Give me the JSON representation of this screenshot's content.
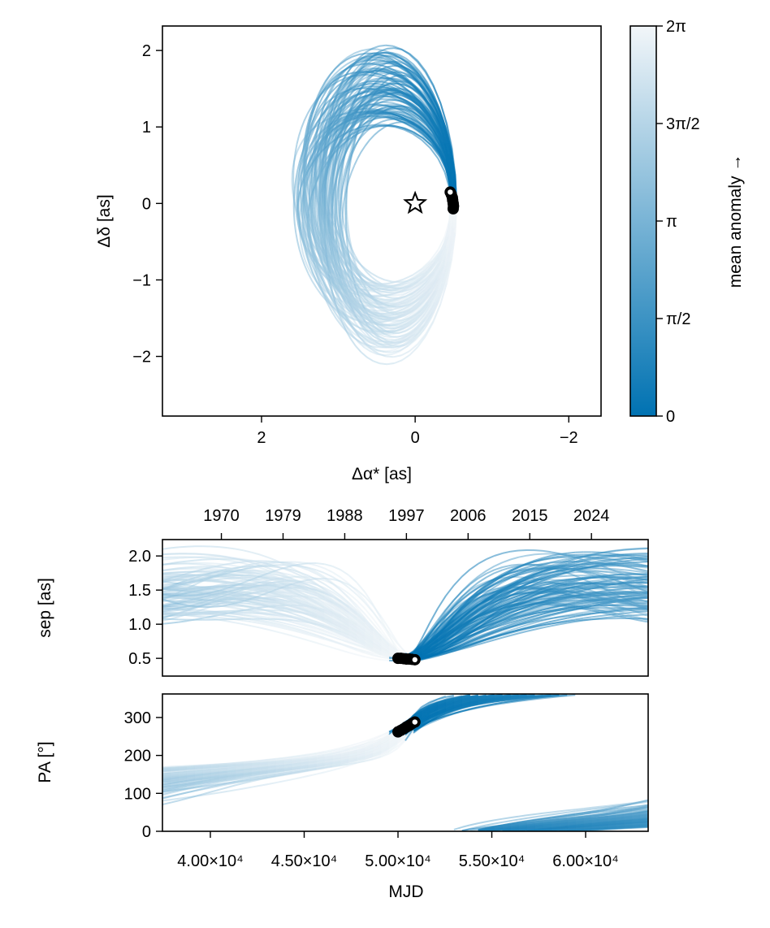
{
  "chart_data": [
    {
      "type": "line",
      "panel": "sky",
      "xlabel": "Δα* [as]",
      "ylabel": "Δδ [as]",
      "xlim": [
        3.29,
        -2.42
      ],
      "ylim": [
        -2.78,
        2.32
      ],
      "x_ticks": [
        {
          "value": 2,
          "label": "2"
        },
        {
          "value": 0,
          "label": "0"
        },
        {
          "value": -2,
          "label": "−2"
        }
      ],
      "y_ticks": [
        {
          "value": 2,
          "label": "2"
        },
        {
          "value": 1,
          "label": "1"
        },
        {
          "value": 0,
          "label": "0"
        },
        {
          "value": -1,
          "label": "−1"
        },
        {
          "value": -2,
          "label": "−2"
        }
      ],
      "star_marker": {
        "x": 0,
        "y": 0,
        "symbol": "star"
      },
      "grid": false,
      "colorbar": {
        "label": "mean anomaly →",
        "range": [
          0,
          6.2832
        ],
        "ticks": [
          {
            "value": 0,
            "label": "0"
          },
          {
            "value": 1.5708,
            "label": "π/2"
          },
          {
            "value": 3.1416,
            "label": "π"
          },
          {
            "value": 4.7124,
            "label": "3π/2"
          },
          {
            "value": 6.2832,
            "label": "2π"
          }
        ],
        "color_low": "#0072b2",
        "color_high": "#f2f6f9"
      }
    },
    {
      "type": "line",
      "panel": "separation",
      "ylabel": "sep [as]",
      "xlim": [
        37446,
        63333
      ],
      "ylim": [
        0.24,
        2.24
      ],
      "y_ticks": [
        {
          "value": 2.0,
          "label": "2.0"
        },
        {
          "value": 1.5,
          "label": "1.5"
        },
        {
          "value": 1.0,
          "label": "1.0"
        },
        {
          "value": 0.5,
          "label": "0.5"
        }
      ],
      "top_axis_years": [
        1970,
        1979,
        1988,
        1997,
        2006,
        2015,
        2024
      ],
      "grid": false
    },
    {
      "type": "line",
      "panel": "position-angle",
      "xlabel": "MJD",
      "ylabel": "PA [°]",
      "xlim": [
        37446,
        63333
      ],
      "ylim": [
        0,
        362
      ],
      "x_ticks": [
        {
          "value": 40000,
          "label": "4.00×10⁴"
        },
        {
          "value": 45000,
          "label": "4.50×10⁴"
        },
        {
          "value": 50000,
          "label": "5.00×10⁴"
        },
        {
          "value": 55000,
          "label": "5.50×10⁴"
        },
        {
          "value": 60000,
          "label": "6.00×10⁴"
        }
      ],
      "y_ticks": [
        {
          "value": 300,
          "label": "300"
        },
        {
          "value": 200,
          "label": "200"
        },
        {
          "value": 100,
          "label": "100"
        },
        {
          "value": 0,
          "label": "0"
        }
      ],
      "grid": false
    }
  ],
  "observations": {
    "mjd": [
      50000,
      50150,
      50300,
      50450,
      50600,
      50750,
      50900
    ],
    "sep": [
      0.5,
      0.5,
      0.495,
      0.49,
      0.49,
      0.485,
      0.48
    ],
    "pa": [
      262,
      266,
      270,
      275,
      279,
      284,
      288
    ],
    "marker_color": "#000000",
    "last_marker_fill": "#ffffff"
  }
}
